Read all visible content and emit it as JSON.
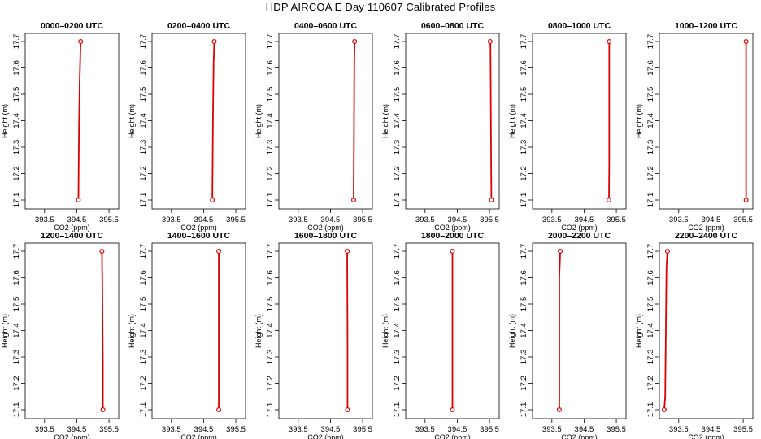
{
  "title": "HDP AIRCOA E  Day 110607  Calibrated Profiles",
  "colors": {
    "profile": "#dd0000",
    "axis": "#000000"
  },
  "chart_data": {
    "type": "line",
    "xlabel": "CO2 (ppm)",
    "ylabel": "Height (m)",
    "xlim": [
      393.0,
      395.7
    ],
    "ylim": [
      17.08,
      17.72
    ],
    "xticks": [
      "393.5",
      "394.5",
      "395.5"
    ],
    "xtick_values": [
      393.5,
      394.5,
      395.5
    ],
    "yticks": [
      "17.1",
      "17.2",
      "17.3",
      "17.4",
      "17.5",
      "17.6",
      "17.7"
    ],
    "ytick_values": [
      17.1,
      17.2,
      17.3,
      17.4,
      17.5,
      17.6,
      17.7
    ],
    "panels": [
      {
        "title": "0000–0200 UTC",
        "points": [
          [
            394.55,
            17.1
          ],
          [
            394.57,
            17.38
          ],
          [
            394.59,
            17.55
          ],
          [
            394.62,
            17.7
          ]
        ]
      },
      {
        "title": "0200–0400 UTC",
        "points": [
          [
            394.77,
            17.1
          ],
          [
            394.79,
            17.42
          ],
          [
            394.81,
            17.62
          ],
          [
            394.83,
            17.7
          ]
        ]
      },
      {
        "title": "0400–0600 UTC",
        "points": [
          [
            395.22,
            17.1
          ],
          [
            395.23,
            17.32
          ],
          [
            395.24,
            17.62
          ],
          [
            395.25,
            17.7
          ]
        ]
      },
      {
        "title": "0600–0800 UTC",
        "points": [
          [
            395.56,
            17.1
          ],
          [
            395.55,
            17.26
          ],
          [
            395.53,
            17.68
          ],
          [
            395.52,
            17.7
          ]
        ]
      },
      {
        "title": "0800–1000 UTC",
        "points": [
          [
            395.27,
            17.1
          ],
          [
            395.28,
            17.24
          ],
          [
            395.28,
            17.68
          ],
          [
            395.28,
            17.7
          ]
        ]
      },
      {
        "title": "1000–1200 UTC",
        "points": [
          [
            395.59,
            17.1
          ],
          [
            395.59,
            17.7
          ]
        ]
      },
      {
        "title": "1200–1400 UTC",
        "points": [
          [
            395.31,
            17.1
          ],
          [
            395.31,
            17.25
          ],
          [
            395.29,
            17.6
          ],
          [
            395.28,
            17.7
          ]
        ]
      },
      {
        "title": "1400–1600 UTC",
        "points": [
          [
            394.97,
            17.1
          ],
          [
            394.97,
            17.53
          ],
          [
            394.97,
            17.7
          ]
        ]
      },
      {
        "title": "1600–1800 UTC",
        "points": [
          [
            395.03,
            17.1
          ],
          [
            395.03,
            17.36
          ],
          [
            395.02,
            17.68
          ],
          [
            395.02,
            17.7
          ]
        ]
      },
      {
        "title": "1800–2000 UTC",
        "points": [
          [
            394.35,
            17.1
          ],
          [
            394.35,
            17.12
          ],
          [
            394.35,
            17.68
          ],
          [
            394.35,
            17.7
          ]
        ]
      },
      {
        "title": "2000–2200 UTC",
        "points": [
          [
            393.73,
            17.1
          ],
          [
            393.73,
            17.6
          ],
          [
            393.76,
            17.7
          ]
        ]
      },
      {
        "title": "2200–2400 UTC",
        "points": [
          [
            393.05,
            17.1
          ],
          [
            393.08,
            17.15
          ],
          [
            393.12,
            17.64
          ],
          [
            393.15,
            17.7
          ]
        ]
      }
    ]
  }
}
